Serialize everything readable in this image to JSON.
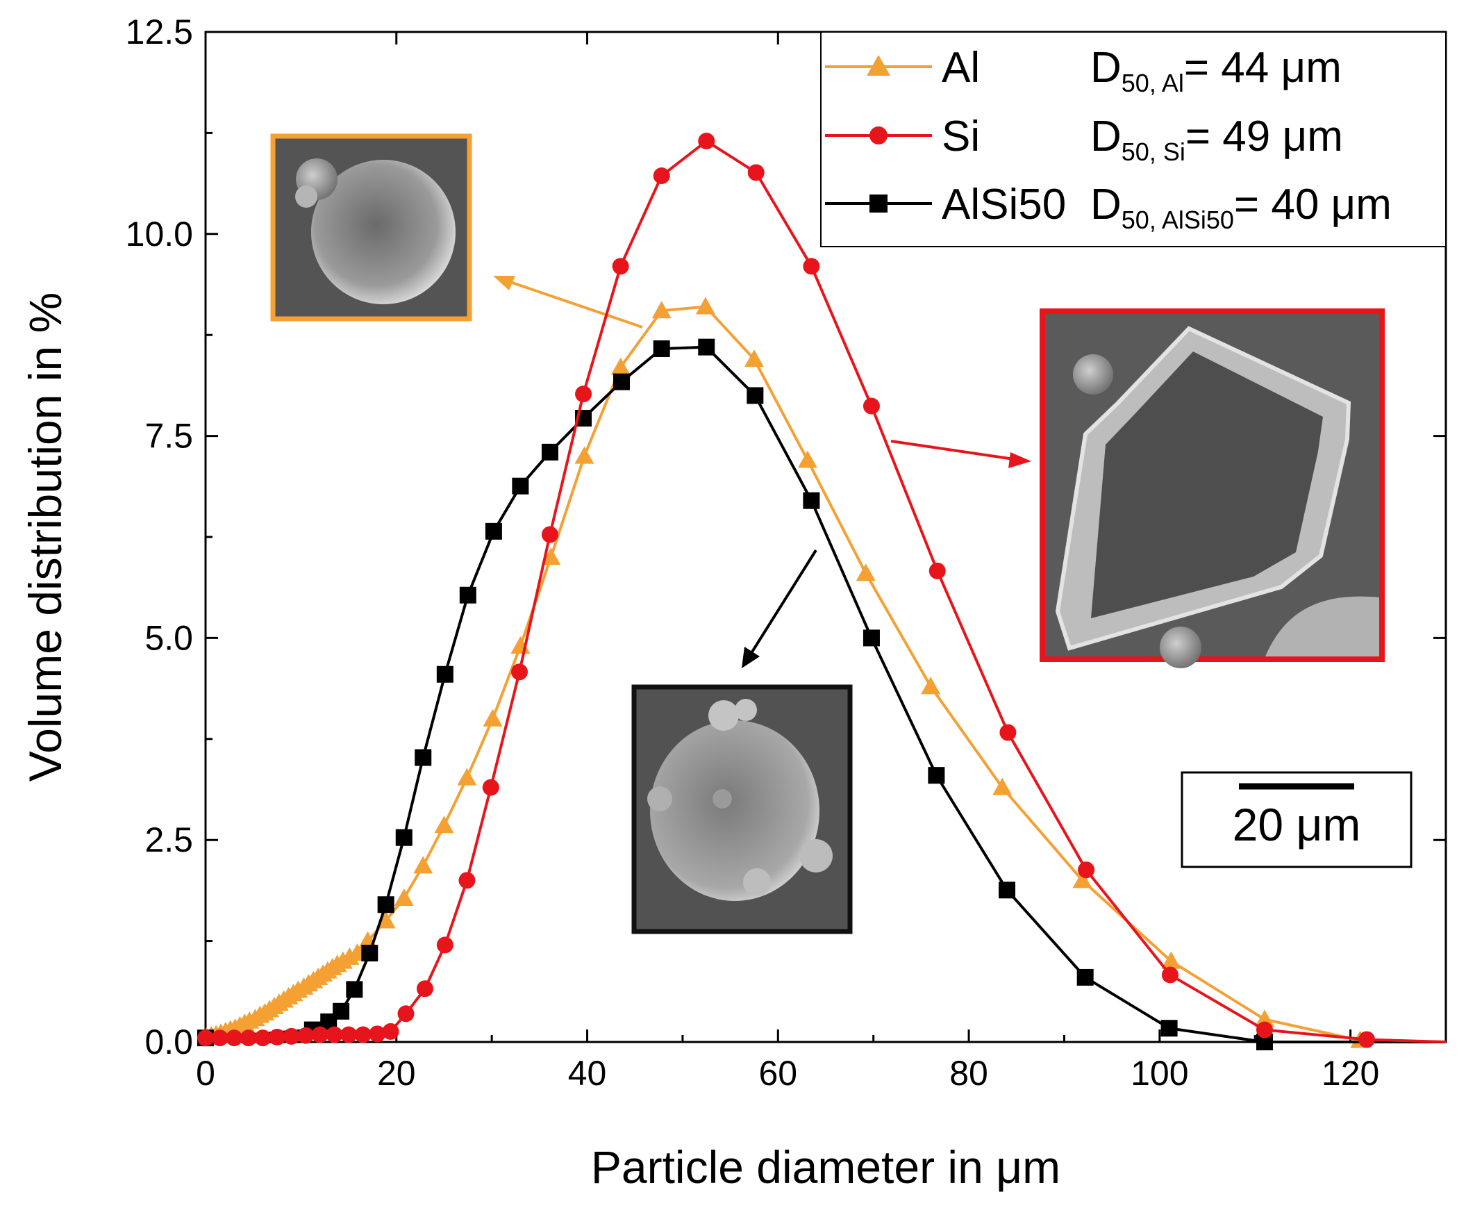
{
  "chart_data": {
    "type": "line",
    "xlabel": "Particle diameter in μm",
    "ylabel": "Volume distribution in %",
    "xlim": [
      0,
      130
    ],
    "ylim": [
      0,
      12.5
    ],
    "xticks": [
      0,
      20,
      40,
      60,
      80,
      100,
      120
    ],
    "yticks": [
      0.0,
      2.5,
      5.0,
      7.5,
      10.0,
      12.5
    ],
    "ytick_labels": [
      "0.0",
      "2.5",
      "5.0",
      "7.5",
      "10.0",
      "12.5"
    ],
    "grid": false,
    "legend_position": "top-right",
    "series": [
      {
        "name": "Al",
        "d50_label": "D",
        "d50_sub": "50, Al",
        "d50_value": "= 44 μm",
        "color": "#F5A033",
        "marker": "triangle",
        "x": [
          0.1,
          0.6,
          1.1,
          1.6,
          2.1,
          2.6,
          3.1,
          3.6,
          4.1,
          4.6,
          5.2,
          5.7,
          6.2,
          6.7,
          7.2,
          7.7,
          8.2,
          8.7,
          9.2,
          9.7,
          10.3,
          10.8,
          11.3,
          11.8,
          12.3,
          12.8,
          13.3,
          13.8,
          14.4,
          15.1,
          15.9,
          17.0,
          18.9,
          20.8,
          22.8,
          25.0,
          27.4,
          30.1,
          33.0,
          36.2,
          39.7,
          43.5,
          47.8,
          52.4,
          57.5,
          63.1,
          69.2,
          76.0,
          83.5,
          91.9,
          101.2,
          111.0,
          121.0,
          130.0
        ],
        "y": [
          0.06,
          0.08,
          0.09,
          0.11,
          0.13,
          0.15,
          0.17,
          0.2,
          0.23,
          0.26,
          0.29,
          0.33,
          0.36,
          0.4,
          0.44,
          0.48,
          0.52,
          0.56,
          0.6,
          0.64,
          0.68,
          0.72,
          0.76,
          0.8,
          0.84,
          0.88,
          0.92,
          0.96,
          1.0,
          1.05,
          1.1,
          1.25,
          1.5,
          1.78,
          2.18,
          2.68,
          3.27,
          4.0,
          4.9,
          6.0,
          7.25,
          8.35,
          9.05,
          9.1,
          8.45,
          7.2,
          5.8,
          4.4,
          3.15,
          2.0,
          1.0,
          0.28,
          0.02,
          0.0
        ]
      },
      {
        "name": "Si",
        "d50_label": "D",
        "d50_sub": "50, Si",
        "d50_value": "= 49 μm",
        "color": "#E8141B",
        "marker": "circle",
        "x": [
          0,
          1.5,
          3,
          4.5,
          6,
          7.5,
          9,
          10.5,
          12,
          13.5,
          15,
          16.5,
          18,
          19.4,
          21.0,
          23.0,
          25.1,
          27.4,
          29.9,
          32.9,
          36.1,
          39.6,
          43.5,
          47.8,
          52.5,
          57.7,
          63.5,
          69.8,
          76.7,
          84.1,
          92.3,
          101.1,
          111.0,
          121.7,
          130.0
        ],
        "y": [
          0.05,
          0.05,
          0.05,
          0.05,
          0.05,
          0.06,
          0.07,
          0.08,
          0.09,
          0.09,
          0.09,
          0.09,
          0.1,
          0.13,
          0.35,
          0.66,
          1.2,
          2.0,
          3.15,
          4.58,
          6.28,
          8.02,
          9.6,
          10.72,
          11.15,
          10.76,
          9.6,
          7.87,
          5.83,
          3.83,
          2.13,
          0.83,
          0.15,
          0.03,
          0.0
        ]
      },
      {
        "name": "AlSi50",
        "d50_label": "D",
        "d50_sub": "50, AlSi50",
        "d50_value": "= 40 μm",
        "color": "#000000",
        "marker": "square",
        "x": [
          0,
          11.2,
          12.9,
          14.2,
          15.6,
          17.2,
          18.9,
          20.8,
          22.8,
          25.1,
          27.5,
          30.2,
          33.0,
          36.1,
          39.6,
          43.6,
          47.8,
          52.5,
          57.6,
          63.5,
          69.8,
          76.6,
          84.0,
          92.2,
          101.0,
          111.0,
          130.0
        ],
        "y": [
          0.05,
          0.15,
          0.25,
          0.38,
          0.65,
          1.1,
          1.7,
          2.53,
          3.52,
          4.55,
          5.53,
          6.32,
          6.88,
          7.3,
          7.72,
          8.17,
          8.58,
          8.6,
          8.0,
          6.7,
          5.0,
          3.3,
          1.88,
          0.8,
          0.17,
          0.0,
          0.0
        ]
      }
    ],
    "insets": [
      {
        "name": "Al particle SEM image",
        "border_color": "#F5A033"
      },
      {
        "name": "Si particle SEM image",
        "border_color": "#E8141B"
      },
      {
        "name": "AlSi50 particle SEM image",
        "border_color": "#000000"
      }
    ],
    "scale_bar_label": "20 μm"
  }
}
